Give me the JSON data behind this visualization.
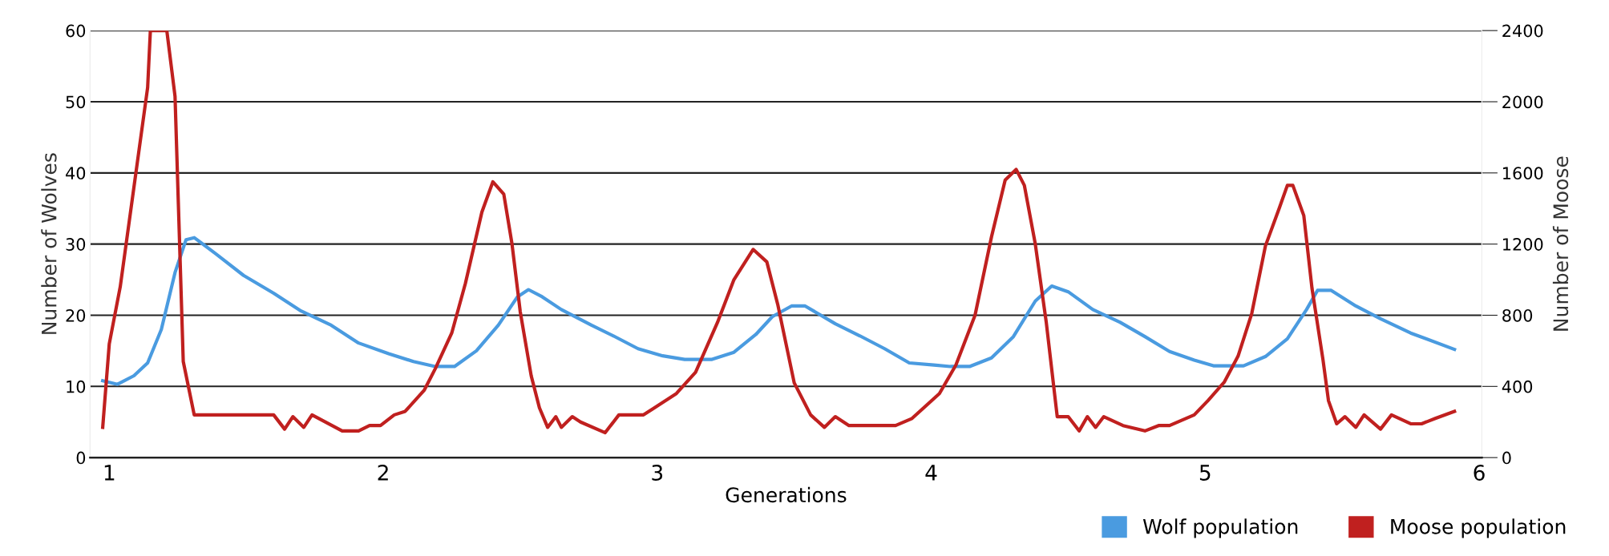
{
  "chart_data": {
    "type": "line",
    "xlabel": "Generations",
    "ylabel": "Number of Wolves",
    "y2label": "Number of Moose",
    "xlim": [
      0.93,
      6.01
    ],
    "xticks": [
      1,
      2,
      3,
      4,
      5,
      6
    ],
    "ylim": [
      0,
      60
    ],
    "yticks": [
      0,
      10,
      20,
      30,
      40,
      50,
      60
    ],
    "y2lim": [
      0,
      2400
    ],
    "y2ticks": [
      0,
      400,
      800,
      1200,
      1600,
      2000,
      2400
    ],
    "grid": "y",
    "legend": "bottom right",
    "marker": "none",
    "line_style": "solid",
    "series": [
      {
        "name": "Wolf population",
        "color": "#4a9be0",
        "x": [
          0.976,
          1.03,
          1.09,
          1.14,
          1.19,
          1.24,
          1.28,
          1.31,
          1.39,
          1.49,
          1.6,
          1.7,
          1.81,
          1.91,
          2.02,
          2.11,
          2.19,
          2.26,
          2.34,
          2.42,
          2.49,
          2.53,
          2.58,
          2.65,
          2.76,
          2.84,
          2.93,
          3.02,
          3.1,
          3.2,
          3.28,
          3.36,
          3.42,
          3.49,
          3.54,
          3.65,
          3.74,
          3.83,
          3.92,
          4.01,
          4.07,
          4.14,
          4.22,
          4.3,
          4.38,
          4.44,
          4.5,
          4.59,
          4.69,
          4.78,
          4.87,
          4.96,
          5.03,
          5.14,
          5.22,
          5.3,
          5.37,
          5.41,
          5.46,
          5.55,
          5.64,
          5.75,
          5.91
        ],
        "values": [
          10.8,
          10.3,
          11.5,
          13.3,
          18,
          26,
          30.6,
          30.9,
          28.6,
          25.6,
          23.1,
          20.6,
          18.6,
          16.1,
          14.6,
          13.5,
          12.8,
          12.8,
          15,
          18.6,
          22.6,
          23.6,
          22.6,
          20.8,
          18.6,
          17.1,
          15.3,
          14.3,
          13.8,
          13.8,
          14.8,
          17.3,
          19.8,
          21.3,
          21.3,
          18.8,
          17.1,
          15.3,
          13.3,
          13,
          12.8,
          12.8,
          14,
          17,
          22,
          24.1,
          23.3,
          20.8,
          19,
          17,
          14.9,
          13.7,
          12.9,
          12.9,
          14.2,
          16.7,
          20.8,
          23.5,
          23.5,
          21.3,
          19.5,
          17.5,
          15.2
        ]
      },
      {
        "name": "Moose population",
        "color": "#c0201f",
        "axis": "y2",
        "x": [
          0.976,
          1.0,
          1.04,
          1.14,
          1.15,
          1.21,
          1.24,
          1.27,
          1.31,
          1.6,
          1.64,
          1.67,
          1.71,
          1.74,
          1.85,
          1.91,
          1.95,
          1.99,
          2.04,
          2.08,
          2.15,
          2.19,
          2.25,
          2.3,
          2.36,
          2.4,
          2.44,
          2.47,
          2.5,
          2.54,
          2.57,
          2.6,
          2.63,
          2.65,
          2.69,
          2.72,
          2.81,
          2.86,
          2.95,
          2.99,
          3.07,
          3.14,
          3.22,
          3.28,
          3.35,
          3.4,
          3.44,
          3.5,
          3.56,
          3.61,
          3.65,
          3.7,
          3.87,
          3.93,
          4.03,
          4.09,
          4.16,
          4.22,
          4.27,
          4.31,
          4.34,
          4.38,
          4.42,
          4.46,
          4.5,
          4.54,
          4.57,
          4.6,
          4.63,
          4.7,
          4.78,
          4.83,
          4.87,
          4.96,
          5.01,
          5.07,
          5.12,
          5.17,
          5.22,
          5.27,
          5.3,
          5.32,
          5.36,
          5.39,
          5.43,
          5.45,
          5.48,
          5.51,
          5.55,
          5.58,
          5.64,
          5.68,
          5.75,
          5.79,
          5.84,
          5.91
        ],
        "values": [
          170,
          640,
          960,
          2080,
          2400,
          2400,
          2030,
          540,
          240,
          240,
          160,
          230,
          170,
          240,
          150,
          150,
          180,
          180,
          240,
          260,
          380,
          500,
          700,
          980,
          1380,
          1550,
          1480,
          1200,
          820,
          460,
          280,
          170,
          230,
          170,
          230,
          200,
          140,
          240,
          240,
          280,
          360,
          480,
          760,
          1000,
          1170,
          1100,
          860,
          420,
          240,
          170,
          230,
          180,
          180,
          220,
          360,
          520,
          800,
          1240,
          1560,
          1620,
          1530,
          1200,
          760,
          230,
          230,
          150,
          230,
          170,
          230,
          180,
          150,
          180,
          180,
          240,
          320,
          425,
          570,
          810,
          1190,
          1400,
          1530,
          1530,
          1360,
          950,
          550,
          320,
          190,
          230,
          170,
          240,
          160,
          240,
          190,
          190,
          220,
          260
        ]
      }
    ]
  }
}
